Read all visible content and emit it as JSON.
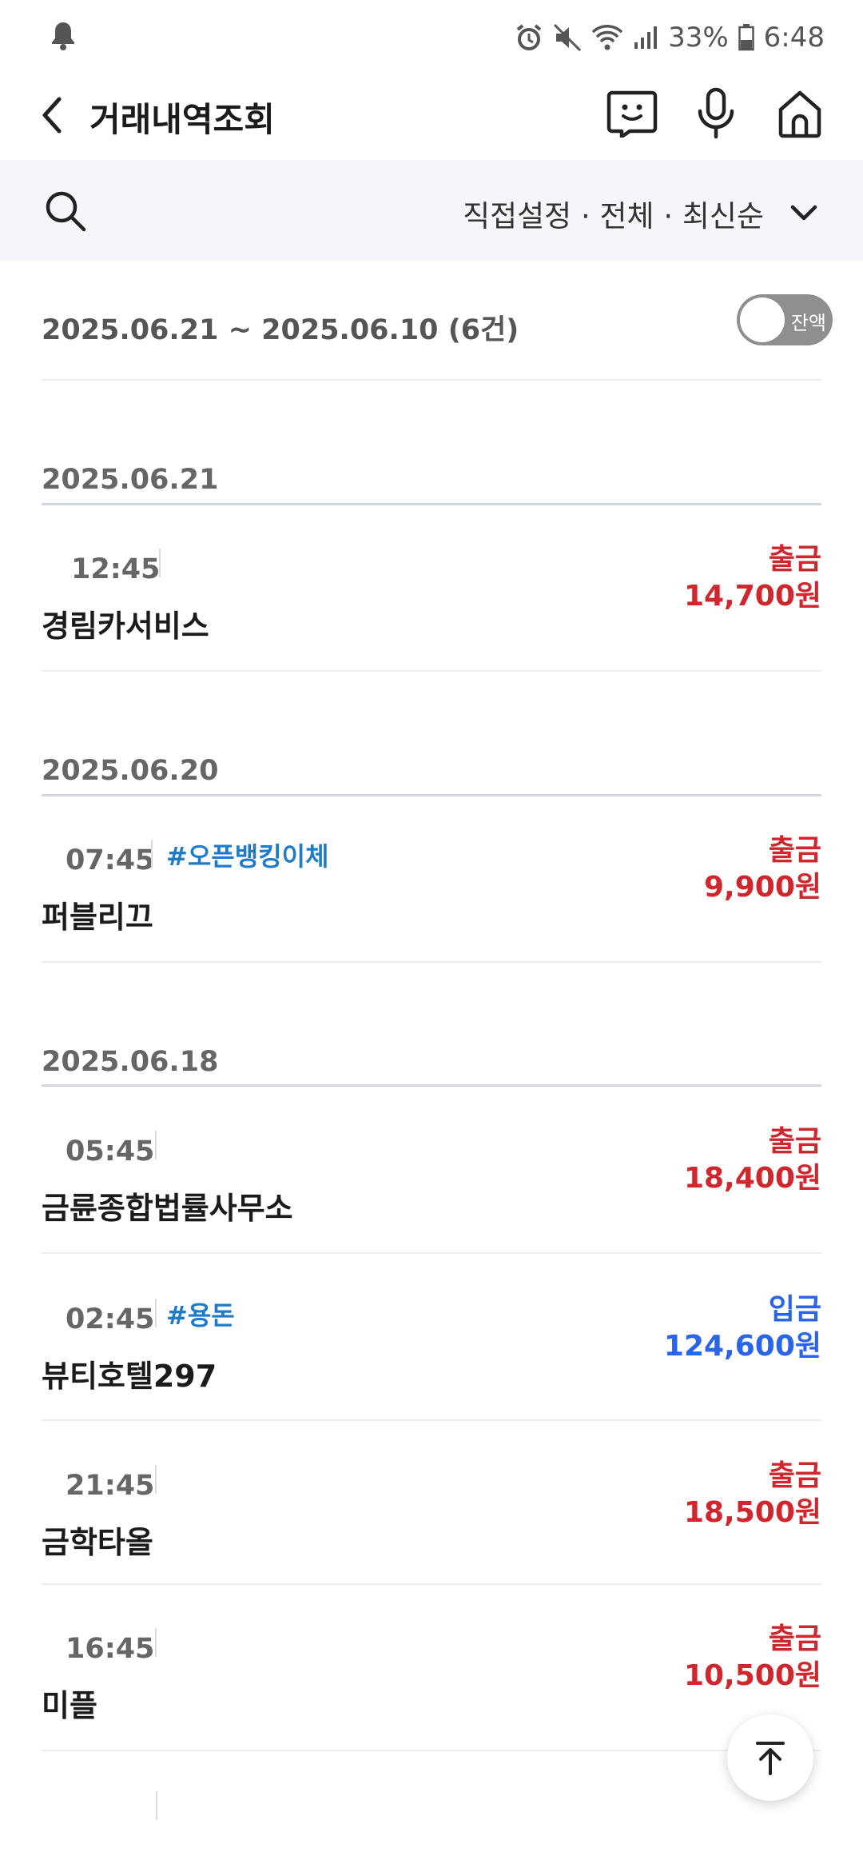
{
  "status_bar": {
    "battery": "33%",
    "time": "6:48"
  },
  "header": {
    "title": "거래내역조회"
  },
  "filter": {
    "summary": "직접설정 · 전체 · 최신순"
  },
  "period": {
    "text": "2025.06.21  ~  2025.06.10  (6건)",
    "balance_toggle_label": "잔액",
    "balance_toggle_on": false
  },
  "groups": [
    {
      "date": "2025.06.21",
      "transactions": [
        {
          "time": "12:45",
          "tag": "",
          "merchant": "경림카서비스",
          "type": "출금",
          "amount": "14,700원"
        }
      ]
    },
    {
      "date": "2025.06.20",
      "transactions": [
        {
          "time": "07:45",
          "tag": "#오픈뱅킹이체",
          "merchant": "퍼블리끄",
          "type": "출금",
          "amount": "9,900원"
        }
      ]
    },
    {
      "date": "2025.06.18",
      "transactions": [
        {
          "time": "05:45",
          "tag": "",
          "merchant": "금륜종합법률사무소",
          "type": "출금",
          "amount": "18,400원"
        },
        {
          "time": "02:45",
          "tag": "#용돈",
          "merchant": "뷰티호텔297",
          "type": "입금",
          "amount": "124,600원"
        },
        {
          "time": "21:45",
          "tag": "",
          "merchant": "금학타올",
          "type": "출금",
          "amount": "18,500원"
        },
        {
          "time": "16:45",
          "tag": "",
          "merchant": "미플",
          "type": "출금",
          "amount": "10,500원"
        }
      ]
    }
  ],
  "colors": {
    "withdrawal": "#d0262d",
    "deposit": "#2a64e8",
    "tag": "#1f7ac8",
    "filter_bg": "#f5f6fa"
  },
  "icons": {
    "chat": "chatbot-face-icon",
    "mic": "microphone-icon",
    "home": "home-icon",
    "search": "search-icon",
    "scroll_top": "arrow-up-to-top-icon"
  }
}
